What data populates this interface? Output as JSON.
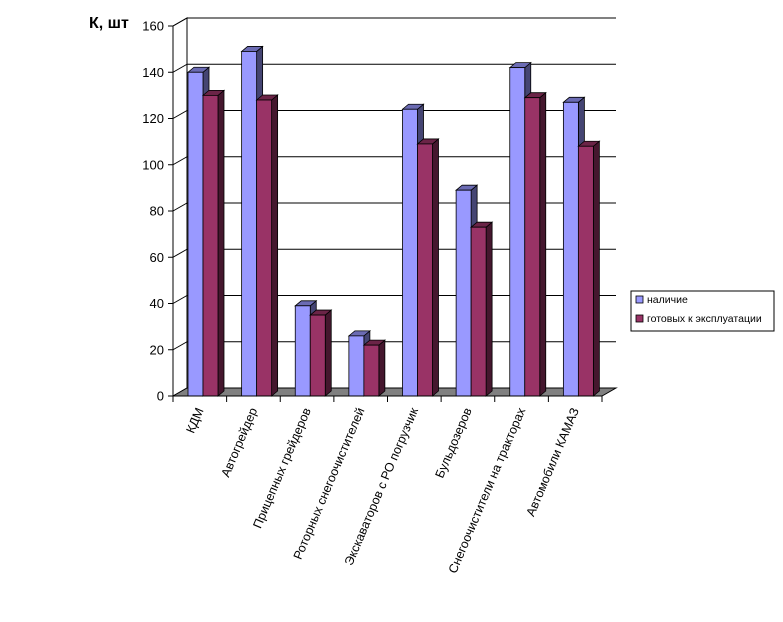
{
  "chart_data": {
    "type": "bar",
    "ylabel": "К, шт",
    "ylim": [
      0,
      160
    ],
    "yticks": [
      0,
      20,
      40,
      60,
      80,
      100,
      120,
      140,
      160
    ],
    "grid": true,
    "legend_position": "right",
    "categories": [
      "КДМ",
      "Автогрейдер",
      "Прицепных грейдеров",
      "Роторных снегоочистителей",
      "Экскаваторов с РО погрузчик",
      "Бульдозеров",
      "Снегоочистители на тракторах",
      "Автомобили КАМАЗ"
    ],
    "series": [
      {
        "name": "наличие",
        "values": [
          140,
          149,
          39,
          26,
          124,
          89,
          142,
          127
        ],
        "color": "#9999ff"
      },
      {
        "name": "готовых к эксплуатации",
        "values": [
          130,
          128,
          35,
          22,
          109,
          73,
          129,
          108
        ],
        "color": "#993366"
      }
    ]
  }
}
